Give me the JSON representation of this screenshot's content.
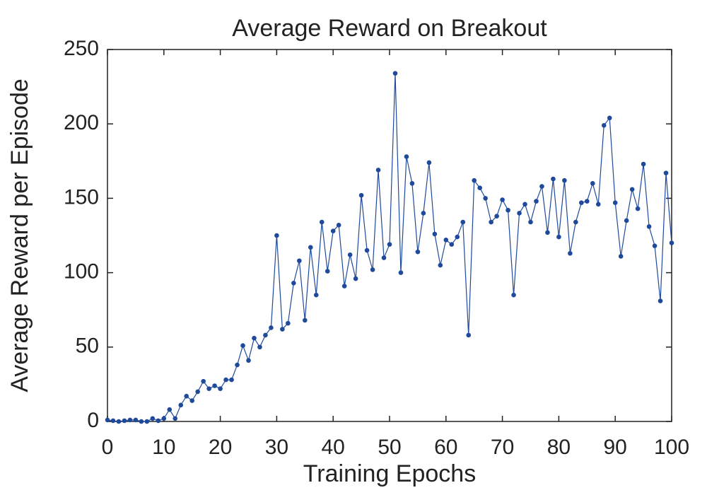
{
  "chart_data": {
    "type": "line",
    "title": "Average Reward on Breakout",
    "x_label": "Training Epochs",
    "y_label": "Average Reward per Episode",
    "x": [
      0,
      1,
      2,
      3,
      4,
      5,
      6,
      7,
      8,
      9,
      10,
      11,
      12,
      13,
      14,
      15,
      16,
      17,
      18,
      19,
      20,
      21,
      22,
      23,
      24,
      25,
      26,
      27,
      28,
      29,
      30,
      31,
      32,
      33,
      34,
      35,
      36,
      37,
      38,
      39,
      40,
      41,
      42,
      43,
      44,
      45,
      46,
      47,
      48,
      49,
      50,
      51,
      52,
      53,
      54,
      55,
      56,
      57,
      58,
      59,
      60,
      61,
      62,
      63,
      64,
      65,
      66,
      67,
      68,
      69,
      70,
      71,
      72,
      73,
      74,
      75,
      76,
      77,
      78,
      79,
      80,
      81,
      82,
      83,
      84,
      85,
      86,
      87,
      88,
      89,
      90,
      91,
      92,
      93,
      94,
      95,
      96,
      97,
      98,
      99,
      100
    ],
    "series": [
      {
        "name": "Average Reward",
        "color": "#1f4a9b",
        "values": [
          1,
          0.5,
          0,
          0.5,
          1,
          1,
          0,
          0,
          2,
          0.5,
          2,
          8,
          2,
          11,
          17,
          14,
          20,
          27,
          22,
          24,
          22,
          28,
          28,
          38,
          51,
          41,
          56,
          50,
          58,
          63,
          125,
          62,
          66,
          93,
          108,
          68,
          117,
          85,
          134,
          101,
          128,
          132,
          91,
          112,
          96,
          152,
          115,
          102,
          169,
          110,
          119,
          234,
          100,
          178,
          160,
          114,
          140,
          174,
          126,
          105,
          122,
          119,
          124,
          134,
          58,
          162,
          157,
          150,
          134,
          138,
          149,
          142,
          85,
          140,
          146,
          134,
          148,
          158,
          127,
          163,
          124,
          162,
          113,
          134,
          147,
          148,
          160,
          146,
          199,
          204,
          147,
          111,
          135,
          156,
          143,
          173,
          131,
          118,
          81,
          167,
          120
        ]
      }
    ],
    "xlim": [
      0,
      100
    ],
    "xticks": [
      0,
      10,
      20,
      30,
      40,
      50,
      60,
      70,
      80,
      90,
      100
    ],
    "ylim": [
      0,
      250
    ],
    "yticks": [
      0,
      50,
      100,
      150,
      200,
      250
    ],
    "grid": false
  }
}
